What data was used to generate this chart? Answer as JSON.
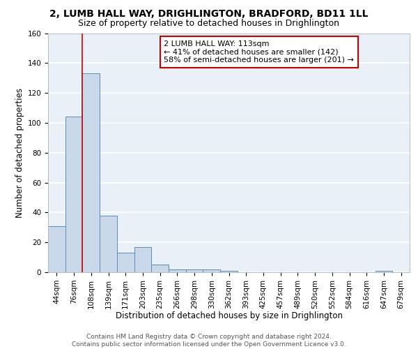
{
  "title1": "2, LUMB HALL WAY, DRIGHLINGTON, BRADFORD, BD11 1LL",
  "title2": "Size of property relative to detached houses in Drighlington",
  "xlabel": "Distribution of detached houses by size in Drighlington",
  "ylabel": "Number of detached properties",
  "categories": [
    "44sqm",
    "76sqm",
    "108sqm",
    "139sqm",
    "171sqm",
    "203sqm",
    "235sqm",
    "266sqm",
    "298sqm",
    "330sqm",
    "362sqm",
    "393sqm",
    "425sqm",
    "457sqm",
    "489sqm",
    "520sqm",
    "552sqm",
    "584sqm",
    "616sqm",
    "647sqm",
    "679sqm"
  ],
  "values": [
    31,
    104,
    133,
    38,
    13,
    17,
    5,
    2,
    2,
    2,
    1,
    0,
    0,
    0,
    0,
    0,
    0,
    0,
    0,
    1,
    0
  ],
  "bar_color": "#c8d8e8",
  "bar_edge_color": "#5b8db8",
  "subject_line_color": "#cc0000",
  "subject_bin_index": 2,
  "annotation_text": "2 LUMB HALL WAY: 113sqm\n← 41% of detached houses are smaller (142)\n58% of semi-detached houses are larger (201) →",
  "annotation_box_color": "#ffffff",
  "annotation_box_edge": "#cc0000",
  "ylim": [
    0,
    160
  ],
  "yticks": [
    0,
    20,
    40,
    60,
    80,
    100,
    120,
    140,
    160
  ],
  "background_color": "#eaf0f8",
  "grid_color": "#ffffff",
  "footnote": "Contains HM Land Registry data © Crown copyright and database right 2024.\nContains public sector information licensed under the Open Government Licence v3.0.",
  "title1_fontsize": 10,
  "title2_fontsize": 9,
  "xlabel_fontsize": 8.5,
  "ylabel_fontsize": 8.5,
  "annotation_fontsize": 8,
  "tick_fontsize": 7.5,
  "footnote_fontsize": 6.5
}
